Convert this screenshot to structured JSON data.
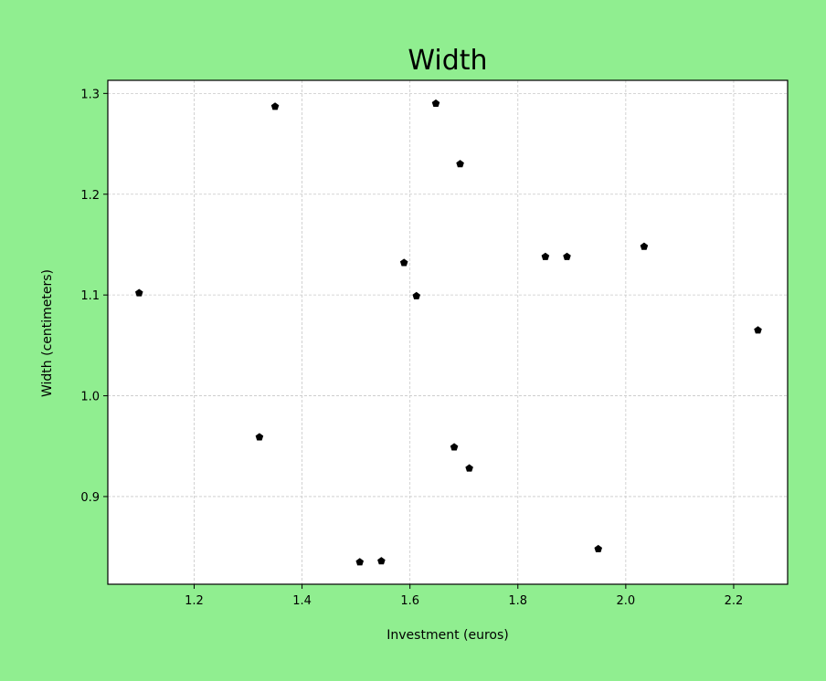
{
  "colors": {
    "background": "#90ee90",
    "plot_background": "#ffffff",
    "marker": "#000000",
    "grid": "#c8c8c8"
  },
  "chart_data": {
    "type": "scatter",
    "title": "Width",
    "xlabel": "Investment (euros)",
    "ylabel": "Width (centimeters)",
    "xlim": [
      1.04,
      2.3
    ],
    "ylim": [
      0.813,
      1.313
    ],
    "xticks": [
      1.2,
      1.4,
      1.6,
      1.8,
      2.0,
      2.2
    ],
    "xtick_labels": [
      "1.2",
      "1.4",
      "1.6",
      "1.8",
      "2.0",
      "2.2"
    ],
    "yticks": [
      0.9,
      1.0,
      1.1,
      1.2,
      1.3
    ],
    "ytick_labels": [
      "0.9",
      "1.0",
      "1.1",
      "1.2",
      "1.3"
    ],
    "grid": true,
    "marker": "pentagon",
    "points": [
      {
        "x": 1.098,
        "y": 1.102
      },
      {
        "x": 1.321,
        "y": 0.959
      },
      {
        "x": 1.35,
        "y": 1.287
      },
      {
        "x": 1.507,
        "y": 0.835
      },
      {
        "x": 1.547,
        "y": 0.836
      },
      {
        "x": 1.589,
        "y": 1.132
      },
      {
        "x": 1.612,
        "y": 1.099
      },
      {
        "x": 1.648,
        "y": 1.29
      },
      {
        "x": 1.682,
        "y": 0.949
      },
      {
        "x": 1.693,
        "y": 1.23
      },
      {
        "x": 1.71,
        "y": 0.928
      },
      {
        "x": 1.851,
        "y": 1.138
      },
      {
        "x": 1.891,
        "y": 1.138
      },
      {
        "x": 1.949,
        "y": 0.848
      },
      {
        "x": 2.034,
        "y": 1.148
      },
      {
        "x": 2.245,
        "y": 1.065
      }
    ]
  }
}
